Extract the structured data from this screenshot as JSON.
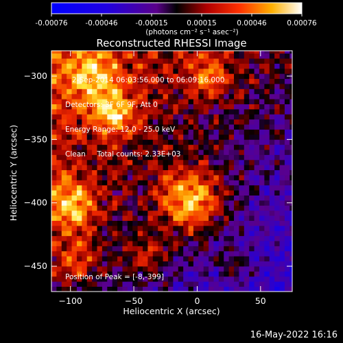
{
  "chart_data": {
    "type": "heatmap",
    "title": "Reconstructed RHESSI Image",
    "xlabel": "Heliocentric X (arcsec)",
    "ylabel": "Heliocentric Y (arcsec)",
    "xlim": [
      -115,
      75
    ],
    "ylim": [
      -470,
      -280
    ],
    "xticks": [
      -100,
      -50,
      0,
      50
    ],
    "yticks": [
      -300,
      -350,
      -400,
      -450
    ],
    "colorbar": {
      "ticks": [
        "-0.00076",
        "-0.00046",
        "-0.00015",
        "0.00015",
        "0.00046",
        "0.00076"
      ],
      "unit_line": "(photons cm⁻² s⁻¹ asec⁻²)",
      "range": [
        -0.00076,
        0.00076
      ]
    },
    "annotations": [
      "2-Sep-2014 06:03:56.000 to 06:09:16.000",
      "Detectors: 3F 6F 9F, Att 0",
      "Energy Range: 12.0 - 25.0 keV",
      "Clean     Total counts: 2.33E+03"
    ],
    "peak_label": "Position of Peak = [-8,-399]",
    "peak": {
      "x": -8,
      "y": -399
    },
    "blobs": [
      {
        "x": -5,
        "y": -398,
        "r": 18,
        "amp": 1.0
      },
      {
        "x": -100,
        "y": -402,
        "r": 15,
        "amp": 0.8
      },
      {
        "x": -82,
        "y": -300,
        "r": 14,
        "amp": 0.6
      },
      {
        "x": -65,
        "y": -330,
        "r": 12,
        "amp": 0.7
      },
      {
        "x": 10,
        "y": -300,
        "r": 12,
        "amp": 0.55
      },
      {
        "x": -95,
        "y": -445,
        "r": 12,
        "amp": 0.5
      },
      {
        "x": -40,
        "y": -440,
        "r": 13,
        "amp": 0.45
      },
      {
        "x": 30,
        "y": -450,
        "r": 10,
        "amp": 0.35
      }
    ]
  },
  "footer": {
    "timestamp": "16-May-2022 16:16"
  }
}
